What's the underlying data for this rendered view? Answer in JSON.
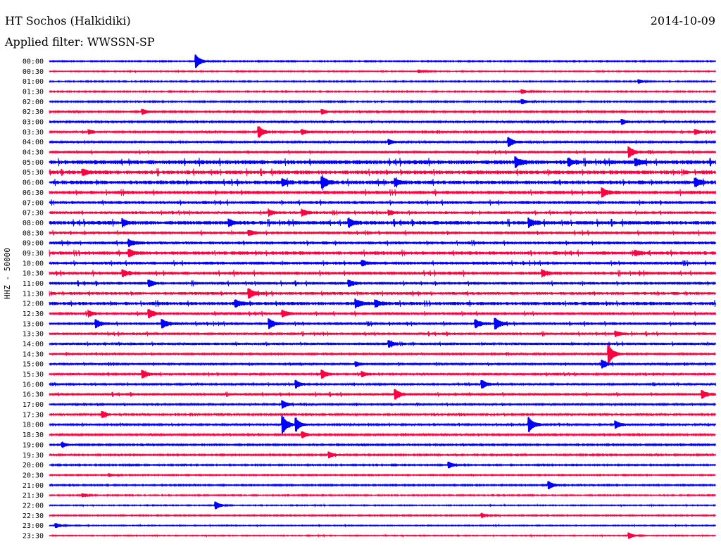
{
  "header": {
    "station": "HT Sochos (Halkidiki)",
    "date": "2014-10-09",
    "filter": "Applied filter: WWSSN-SP"
  },
  "chart_data": {
    "type": "line",
    "title": "HT Sochos (Halkidiki) 2014-10-09",
    "ylabel": "HHZ - 50000",
    "colors": {
      "even": "#0000ff",
      "odd": "#ff0040"
    },
    "rows": [
      {
        "label": "00:00",
        "noise": 0.6,
        "events": [
          [
            0.22,
            9
          ]
        ]
      },
      {
        "label": "00:30",
        "noise": 0.5,
        "events": [
          [
            0.555,
            2
          ]
        ]
      },
      {
        "label": "01:00",
        "noise": 0.6,
        "events": [
          [
            0.885,
            2.5
          ]
        ]
      },
      {
        "label": "01:30",
        "noise": 0.6,
        "events": [
          [
            0.71,
            2.5
          ]
        ]
      },
      {
        "label": "02:00",
        "noise": 0.7,
        "events": [
          [
            0.71,
            3
          ]
        ]
      },
      {
        "label": "02:30",
        "noise": 0.8,
        "events": [
          [
            0.14,
            3.5
          ],
          [
            0.41,
            3
          ]
        ]
      },
      {
        "label": "03:00",
        "noise": 0.9,
        "events": [
          [
            0.86,
            3
          ]
        ]
      },
      {
        "label": "03:30",
        "noise": 1.0,
        "events": [
          [
            0.06,
            2.5
          ],
          [
            0.315,
            7
          ],
          [
            0.38,
            3
          ],
          [
            0.97,
            3
          ]
        ]
      },
      {
        "label": "04:00",
        "noise": 1.0,
        "events": [
          [
            0.51,
            3
          ],
          [
            0.69,
            6
          ]
        ]
      },
      {
        "label": "04:30",
        "noise": 1.2,
        "events": [
          [
            0.87,
            7
          ]
        ]
      },
      {
        "label": "05:00",
        "noise": 2.2,
        "events": [
          [
            0.7,
            6
          ],
          [
            0.78,
            4
          ],
          [
            0.88,
            4
          ]
        ]
      },
      {
        "label": "05:30",
        "noise": 2.0,
        "events": [
          [
            0.05,
            3
          ]
        ]
      },
      {
        "label": "06:00",
        "noise": 2.0,
        "events": [
          [
            0.35,
            4
          ],
          [
            0.41,
            7
          ],
          [
            0.52,
            4
          ],
          [
            0.97,
            5
          ]
        ]
      },
      {
        "label": "06:30",
        "noise": 1.8,
        "events": [
          [
            0.83,
            5
          ]
        ]
      },
      {
        "label": "07:00",
        "noise": 1.6,
        "events": []
      },
      {
        "label": "07:30",
        "noise": 1.4,
        "events": [
          [
            0.33,
            3
          ],
          [
            0.38,
            4
          ],
          [
            0.51,
            3
          ]
        ]
      },
      {
        "label": "08:00",
        "noise": 2.0,
        "events": [
          [
            0.11,
            4
          ],
          [
            0.27,
            4
          ],
          [
            0.45,
            5
          ],
          [
            0.72,
            5
          ]
        ]
      },
      {
        "label": "08:30",
        "noise": 1.5,
        "events": [
          [
            0.3,
            3
          ]
        ]
      },
      {
        "label": "09:00",
        "noise": 1.6,
        "events": [
          [
            0.12,
            4
          ]
        ]
      },
      {
        "label": "09:30",
        "noise": 1.8,
        "events": [
          [
            0.12,
            4
          ],
          [
            0.88,
            3
          ]
        ]
      },
      {
        "label": "10:00",
        "noise": 1.6,
        "events": [
          [
            0.47,
            3
          ]
        ]
      },
      {
        "label": "10:30",
        "noise": 1.7,
        "events": [
          [
            0.11,
            4
          ],
          [
            0.74,
            4
          ]
        ]
      },
      {
        "label": "11:00",
        "noise": 1.5,
        "events": [
          [
            0.15,
            4
          ],
          [
            0.45,
            4
          ]
        ]
      },
      {
        "label": "11:30",
        "noise": 1.5,
        "events": [
          [
            0.3,
            6
          ]
        ]
      },
      {
        "label": "12:00",
        "noise": 1.8,
        "events": [
          [
            0.28,
            4
          ],
          [
            0.46,
            5
          ],
          [
            0.49,
            4
          ]
        ]
      },
      {
        "label": "12:30",
        "noise": 1.4,
        "events": [
          [
            0.06,
            3
          ],
          [
            0.15,
            5
          ],
          [
            0.35,
            4
          ]
        ]
      },
      {
        "label": "13:00",
        "noise": 1.4,
        "events": [
          [
            0.07,
            5
          ],
          [
            0.17,
            5
          ],
          [
            0.33,
            6
          ],
          [
            0.64,
            5
          ],
          [
            0.67,
            7
          ]
        ]
      },
      {
        "label": "13:30",
        "noise": 1.3,
        "events": [
          [
            0.85,
            3
          ]
        ]
      },
      {
        "label": "14:00",
        "noise": 1.3,
        "events": [
          [
            0.51,
            4
          ]
        ]
      },
      {
        "label": "14:30",
        "noise": 1.0,
        "events": [
          [
            0.84,
            12
          ]
        ]
      },
      {
        "label": "15:00",
        "noise": 1.1,
        "events": [
          [
            0.46,
            3
          ],
          [
            0.83,
            5
          ]
        ]
      },
      {
        "label": "15:30",
        "noise": 1.1,
        "events": [
          [
            0.14,
            5
          ],
          [
            0.41,
            5
          ],
          [
            0.47,
            3
          ]
        ]
      },
      {
        "label": "16:00",
        "noise": 1.0,
        "events": [
          [
            0.37,
            5
          ],
          [
            0.65,
            5
          ]
        ]
      },
      {
        "label": "16:30",
        "noise": 1.3,
        "events": [
          [
            0.52,
            6
          ],
          [
            0.98,
            5
          ]
        ]
      },
      {
        "label": "17:00",
        "noise": 1.0,
        "events": [
          [
            0.35,
            5
          ]
        ]
      },
      {
        "label": "17:30",
        "noise": 0.9,
        "events": [
          [
            0.08,
            4
          ]
        ]
      },
      {
        "label": "18:00",
        "noise": 1.0,
        "events": [
          [
            0.35,
            12
          ],
          [
            0.37,
            8
          ],
          [
            0.72,
            10
          ],
          [
            0.85,
            5
          ]
        ]
      },
      {
        "label": "18:30",
        "noise": 0.9,
        "events": [
          [
            0.38,
            4
          ]
        ]
      },
      {
        "label": "19:00",
        "noise": 0.8,
        "events": [
          [
            0.02,
            3
          ]
        ]
      },
      {
        "label": "19:30",
        "noise": 0.8,
        "events": [
          [
            0.42,
            4
          ]
        ]
      },
      {
        "label": "20:00",
        "noise": 0.7,
        "events": [
          [
            0.6,
            4
          ]
        ]
      },
      {
        "label": "20:30",
        "noise": 0.6,
        "events": [
          [
            0.09,
            2
          ]
        ]
      },
      {
        "label": "21:00",
        "noise": 0.7,
        "events": [
          [
            0.75,
            5
          ]
        ]
      },
      {
        "label": "21:30",
        "noise": 0.6,
        "events": [
          [
            0.05,
            2
          ]
        ]
      },
      {
        "label": "22:00",
        "noise": 0.5,
        "events": [
          [
            0.25,
            5
          ]
        ]
      },
      {
        "label": "22:30",
        "noise": 0.6,
        "events": [
          [
            0.65,
            2.5
          ]
        ]
      },
      {
        "label": "23:00",
        "noise": 0.5,
        "events": [
          [
            0.01,
            3
          ]
        ]
      },
      {
        "label": "23:30",
        "noise": 0.5,
        "events": [
          [
            0.87,
            4
          ]
        ]
      }
    ]
  }
}
